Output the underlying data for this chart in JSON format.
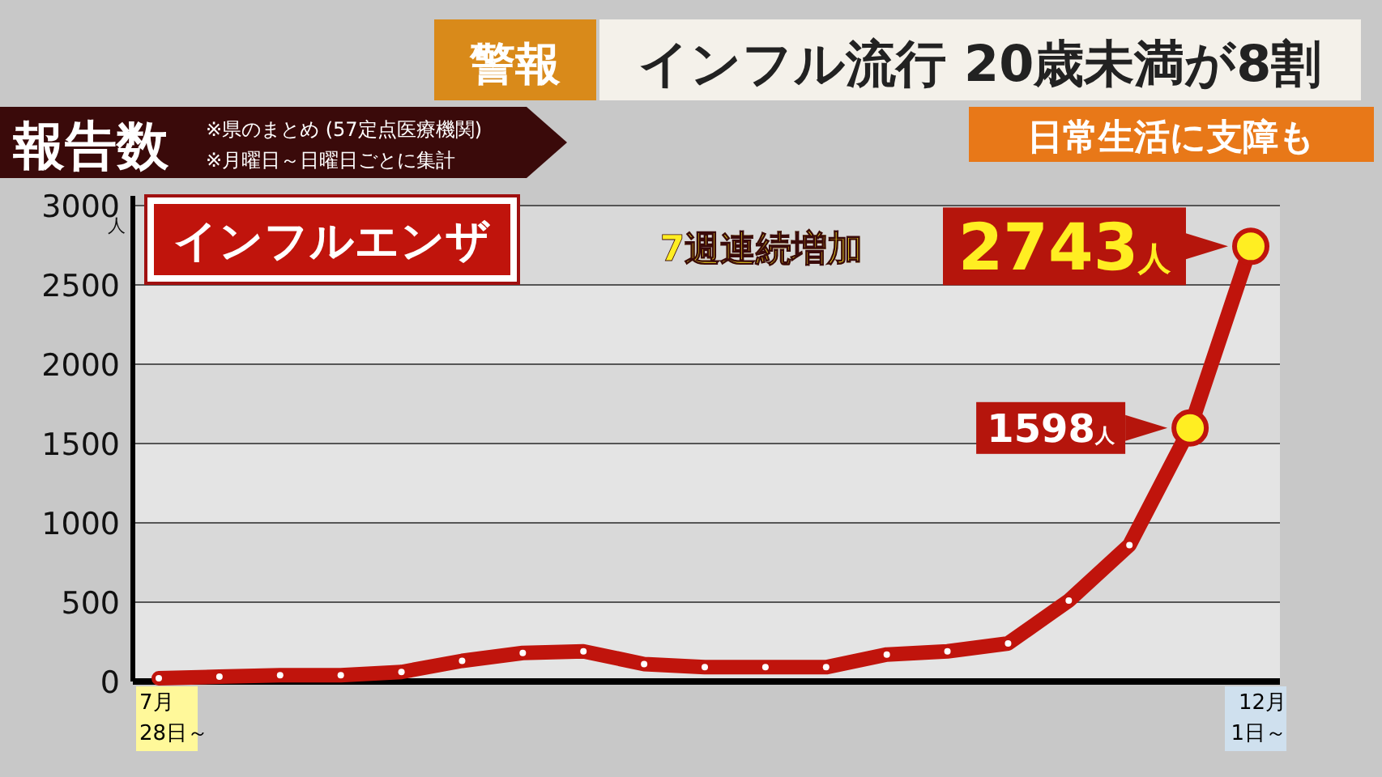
{
  "chart_data": {
    "type": "line",
    "title": "インフル流行 20歳未満が8割",
    "subtitle": "日常生活に支障も",
    "ylabel": "人",
    "annotations": [
      "警報",
      "報告数",
      "※県のまとめ (57定点医療機関)",
      "※月曜日～日曜日ごとに集計",
      "7週連続増加"
    ],
    "categories": [
      "7月\n28日～",
      null,
      null,
      null,
      null,
      null,
      null,
      null,
      null,
      null,
      null,
      null,
      null,
      null,
      null,
      null,
      null,
      null,
      "12月\n1日～"
    ],
    "series": [
      {
        "name": "インフルエンザ",
        "color": "#c0140c",
        "values": [
          20,
          30,
          40,
          40,
          60,
          130,
          180,
          190,
          110,
          90,
          90,
          90,
          170,
          190,
          240,
          510,
          860,
          1598,
          2743
        ],
        "value_labels": [
          null,
          null,
          null,
          null,
          null,
          null,
          null,
          null,
          null,
          null,
          null,
          null,
          null,
          null,
          null,
          null,
          null,
          "1598人",
          "2743人"
        ]
      }
    ],
    "ylim": [
      0,
      3000
    ],
    "yticks": [
      0,
      500,
      1000,
      1500,
      2000,
      2500,
      3000
    ],
    "grid": "y",
    "marker": "circle",
    "line_style": "solid",
    "legend": "top left"
  }
}
